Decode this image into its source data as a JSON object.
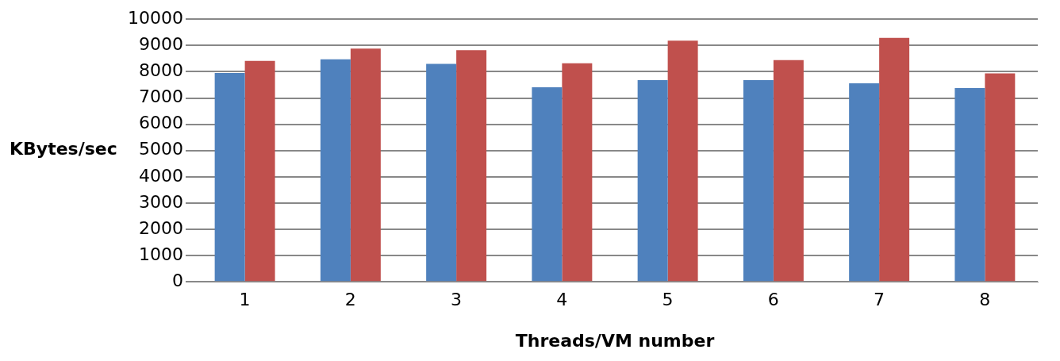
{
  "chart_data": {
    "type": "bar",
    "xlabel": "Threads/VM number",
    "ylabel": "KBytes/sec",
    "categories": [
      "1",
      "2",
      "3",
      "4",
      "5",
      "6",
      "7",
      "8"
    ],
    "series": [
      {
        "color": "#4f81bd",
        "values": [
          7950,
          8470,
          8300,
          7410,
          7680,
          7680,
          7560,
          7380
        ]
      },
      {
        "color": "#c0504d",
        "values": [
          8410,
          8880,
          8820,
          8320,
          9180,
          8440,
          9290,
          7940
        ]
      }
    ],
    "ylim": [
      0,
      10000
    ],
    "yticks": [
      0,
      1000,
      2000,
      3000,
      4000,
      5000,
      6000,
      7000,
      8000,
      9000,
      10000
    ],
    "grid": "y",
    "legend": false
  }
}
